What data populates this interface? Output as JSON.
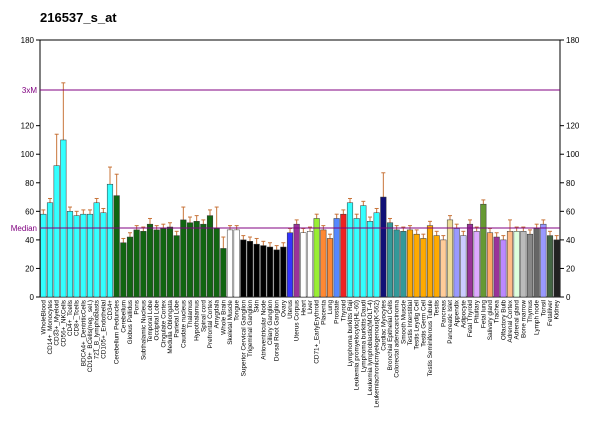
{
  "chart_data": {
    "type": "bar",
    "title": "216537_s_at",
    "categories": [
      "WholeBlood",
      "CD14+_Monocytes",
      "CD33+_Myeloid",
      "CD56+_NKCells",
      "CD4+_Tcells",
      "CD8+_Tcells",
      "BDCA4+_DentriticCells",
      "CD19+_BCells(neg._sel.)",
      "721_B_lymphoblasts",
      "CD105+_Endothelial",
      "CD34+",
      "Cerebellum Peduncles",
      "Cerebellum",
      "Globus Pallidus",
      "Pons",
      "Subthalamic Nucleus",
      "Temporal Lobe",
      "Occipital Lobe",
      "Cingulate Cortex",
      "Medulla Oblongata",
      "Parietal Lobe",
      "Caudate nucleus",
      "Thalamus",
      "Hypothalamus",
      "Spinal cord",
      "Prefrontal Cortex",
      "Amygdala",
      "Whole Brain",
      "Skeletal Muscle",
      "Tongue",
      "Superior Cervical Ganglion",
      "Trigeminal Ganglion",
      "Skin",
      "Atrioventricular Node",
      "Ciliary Ganglion",
      "Dorsal Root Ganglion",
      "Ovary",
      "Uterus",
      "Uterus Corpus",
      "Heart",
      "Liver",
      "CD71+_EarlyErythroid",
      "Placenta",
      "Lung",
      "Prostate",
      "Thyroid",
      "Lymphoma burkitts Raji",
      "Leukemia promyelocytic(HL-60)",
      "Lymphoma burkitts Daudi",
      "Leukemia lymphoblastic(MOLT-4)",
      "Leukemiachronicmyelogenous(K-562)",
      "Cardiac Myocytes",
      "Bronchial Epithelial Cells",
      "Colorectal adenocarcinoma",
      "Smooth Muscle",
      "Testis Interstitial",
      "Testis Leydig Cell",
      "Testis Germ Cell",
      "Testis Seminiferous Tubule",
      "Testis",
      "Pancreas",
      "Pancreatic Islet",
      "Appendix",
      "Adipocyte",
      "Fetal Thyroid",
      "Pituitary",
      "Fetal lung",
      "Salivary gland",
      "Trachea",
      "Olfactory Bulb",
      "Adrenal Cortex",
      "Adrenal gland",
      "Bone marrow",
      "Thymus",
      "Lymph node",
      "Tonsil",
      "Fetalliver",
      "Kidney"
    ],
    "values": [
      58,
      66,
      92,
      110,
      60,
      57,
      58,
      58,
      66,
      59,
      79,
      71,
      38,
      42,
      47,
      46,
      51,
      47,
      48,
      49,
      43,
      54,
      52,
      53,
      51,
      57,
      48,
      34,
      47,
      47,
      40,
      39,
      37,
      36,
      35,
      33,
      35,
      45,
      51,
      45,
      46,
      55,
      47,
      41,
      55,
      58,
      66,
      55,
      64,
      53,
      59,
      70,
      52,
      47,
      46,
      47,
      44,
      41,
      50,
      43,
      40,
      54,
      48,
      43,
      51,
      46,
      65,
      45,
      42,
      40,
      46,
      46,
      46,
      44,
      48,
      51,
      43,
      40
    ],
    "errors": [
      3,
      3,
      22,
      40,
      3,
      3,
      3,
      3,
      3,
      3,
      12,
      15,
      3,
      3,
      3,
      3,
      4,
      3,
      3,
      3,
      3,
      9,
      4,
      4,
      3,
      4,
      15,
      8,
      3,
      3,
      3,
      3,
      4,
      3,
      3,
      3,
      3,
      3,
      3,
      3,
      3,
      3,
      3,
      3,
      3,
      3,
      3,
      3,
      3,
      3,
      3,
      17,
      3,
      3,
      3,
      3,
      3,
      3,
      3,
      3,
      3,
      3,
      3,
      3,
      3,
      3,
      3,
      3,
      3,
      3,
      8,
      3,
      3,
      3,
      3,
      3,
      3,
      3
    ],
    "colors": [
      "#33ffff",
      "#33ffff",
      "#33ffff",
      "#33ffff",
      "#33ffff",
      "#33ffff",
      "#33ffff",
      "#33ffff",
      "#33ffff",
      "#33ffff",
      "#33ffff",
      "#116611",
      "#116611",
      "#116611",
      "#116611",
      "#116611",
      "#116611",
      "#116611",
      "#116611",
      "#116611",
      "#116611",
      "#116611",
      "#116611",
      "#116611",
      "#116611",
      "#116611",
      "#116611",
      "#116611",
      "#ffffff",
      "#ffffff",
      "#000000",
      "#000000",
      "#000000",
      "#000000",
      "#000000",
      "#000000",
      "#000000",
      "#3333ff",
      "#993399",
      "#ffffff",
      "#ffffff",
      "#99ee33",
      "#ff8833",
      "#ff8833",
      "#5588ff",
      "#ee2222",
      "#33ffff",
      "#33ffff",
      "#33ffff",
      "#33ffff",
      "#33ffff",
      "#111177",
      "#339999",
      "#339999",
      "#339999",
      "#ffaa00",
      "#ffaa00",
      "#ffaa00",
      "#ffaa00",
      "#ffaa00",
      "#ffcc99",
      "#eedd99",
      "#9999ff",
      "#ccccff",
      "#993399",
      "#ddaaff",
      "#669933",
      "#ffaa66",
      "#993399",
      "#bb88ff",
      "#ffbb88",
      "#ddffdd",
      "#bbbbbb",
      "#888888",
      "#666666",
      "#9999ff",
      "#446644",
      "#222222"
    ],
    "ylim": [
      0,
      180
    ],
    "yticks": [
      0,
      20,
      40,
      60,
      80,
      100,
      120,
      180
    ],
    "reference_lines": [
      {
        "label": "3xM",
        "value": 145
      },
      {
        "label": "Median",
        "value": 48.3
      }
    ]
  }
}
